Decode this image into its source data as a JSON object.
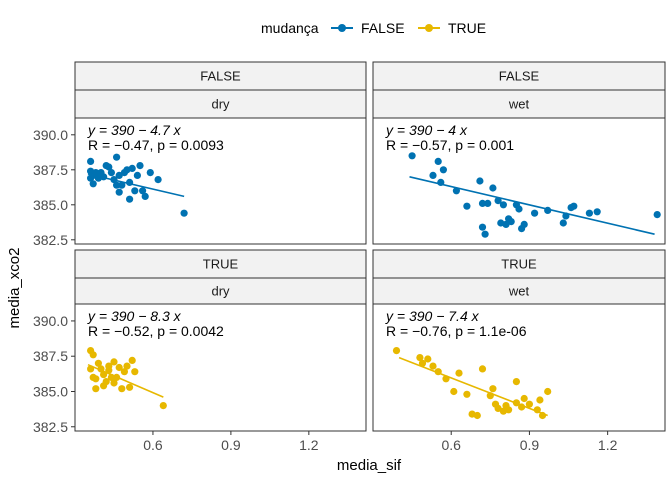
{
  "legend": {
    "title": "mudança",
    "entries": [
      {
        "label": "FALSE",
        "color": "#0072B2"
      },
      {
        "label": "TRUE",
        "color": "#E7B800"
      }
    ]
  },
  "chart_data": {
    "type": "scatter",
    "xlabel": "media_sif",
    "ylabel": "media_xco2",
    "xlim": [
      0.3,
      1.42
    ],
    "ylim": [
      382.2,
      391.2
    ],
    "x_ticks": [
      0.6,
      0.9,
      1.2
    ],
    "x_tick_labels": [
      "0.6",
      "0.9",
      "1.2"
    ],
    "y_ticks": [
      382.5,
      385.0,
      387.5,
      390.0
    ],
    "y_tick_labels": [
      "382.5",
      "385.0",
      "387.5",
      "390.0"
    ],
    "legend_position": "top",
    "grid": false,
    "panels": [
      {
        "strip_top": "FALSE",
        "strip_bottom": "dry",
        "group": "FALSE",
        "color": "#0072B2",
        "equation": "y = 390 − 4.7 x",
        "stats": "R = −0.47, p = 0.0093",
        "fit": {
          "x": [
            0.35,
            0.72
          ],
          "y": [
            387.2,
            385.6
          ]
        },
        "points": [
          {
            "x": 0.36,
            "y": 388.1
          },
          {
            "x": 0.36,
            "y": 387.4
          },
          {
            "x": 0.36,
            "y": 386.9
          },
          {
            "x": 0.37,
            "y": 386.5
          },
          {
            "x": 0.37,
            "y": 387.1
          },
          {
            "x": 0.38,
            "y": 387.3
          },
          {
            "x": 0.39,
            "y": 386.9
          },
          {
            "x": 0.4,
            "y": 387.3
          },
          {
            "x": 0.41,
            "y": 387.0
          },
          {
            "x": 0.42,
            "y": 387.8
          },
          {
            "x": 0.43,
            "y": 387.7
          },
          {
            "x": 0.44,
            "y": 387.3
          },
          {
            "x": 0.45,
            "y": 386.8
          },
          {
            "x": 0.46,
            "y": 386.4
          },
          {
            "x": 0.46,
            "y": 388.4
          },
          {
            "x": 0.47,
            "y": 387.1
          },
          {
            "x": 0.47,
            "y": 385.9
          },
          {
            "x": 0.48,
            "y": 386.4
          },
          {
            "x": 0.49,
            "y": 387.3
          },
          {
            "x": 0.5,
            "y": 387.5
          },
          {
            "x": 0.51,
            "y": 385.4
          },
          {
            "x": 0.51,
            "y": 386.6
          },
          {
            "x": 0.52,
            "y": 387.6
          },
          {
            "x": 0.53,
            "y": 386.0
          },
          {
            "x": 0.54,
            "y": 387.1
          },
          {
            "x": 0.55,
            "y": 387.8
          },
          {
            "x": 0.56,
            "y": 386.0
          },
          {
            "x": 0.57,
            "y": 385.6
          },
          {
            "x": 0.59,
            "y": 387.3
          },
          {
            "x": 0.62,
            "y": 386.8
          },
          {
            "x": 0.72,
            "y": 384.4
          }
        ]
      },
      {
        "strip_top": "FALSE",
        "strip_bottom": "wet",
        "group": "FALSE",
        "color": "#0072B2",
        "equation": "y = 390 − 4 x",
        "stats": "R = −0.57, p = 0.001",
        "fit": {
          "x": [
            0.44,
            1.38
          ],
          "y": [
            387.0,
            382.9
          ]
        },
        "points": [
          {
            "x": 0.45,
            "y": 388.5
          },
          {
            "x": 0.53,
            "y": 387.1
          },
          {
            "x": 0.55,
            "y": 388.1
          },
          {
            "x": 0.56,
            "y": 386.6
          },
          {
            "x": 0.57,
            "y": 387.5
          },
          {
            "x": 0.62,
            "y": 386.0
          },
          {
            "x": 0.66,
            "y": 384.9
          },
          {
            "x": 0.71,
            "y": 386.7
          },
          {
            "x": 0.72,
            "y": 385.1
          },
          {
            "x": 0.72,
            "y": 383.4
          },
          {
            "x": 0.73,
            "y": 382.9
          },
          {
            "x": 0.74,
            "y": 385.1
          },
          {
            "x": 0.76,
            "y": 386.2
          },
          {
            "x": 0.78,
            "y": 385.3
          },
          {
            "x": 0.79,
            "y": 383.7
          },
          {
            "x": 0.8,
            "y": 385.0
          },
          {
            "x": 0.81,
            "y": 383.6
          },
          {
            "x": 0.82,
            "y": 384.0
          },
          {
            "x": 0.83,
            "y": 383.8
          },
          {
            "x": 0.85,
            "y": 385.0
          },
          {
            "x": 0.86,
            "y": 384.7
          },
          {
            "x": 0.87,
            "y": 383.3
          },
          {
            "x": 0.88,
            "y": 383.6
          },
          {
            "x": 0.92,
            "y": 384.4
          },
          {
            "x": 0.97,
            "y": 384.6
          },
          {
            "x": 1.03,
            "y": 383.7
          },
          {
            "x": 1.04,
            "y": 384.2
          },
          {
            "x": 1.06,
            "y": 384.8
          },
          {
            "x": 1.07,
            "y": 384.9
          },
          {
            "x": 1.13,
            "y": 384.4
          },
          {
            "x": 1.16,
            "y": 384.5
          },
          {
            "x": 1.39,
            "y": 384.3
          }
        ]
      },
      {
        "strip_top": "TRUE",
        "strip_bottom": "dry",
        "group": "TRUE",
        "color": "#E7B800",
        "equation": "y = 390 − 8.3 x",
        "stats": "R = −0.52, p = 0.0042",
        "fit": {
          "x": [
            0.35,
            0.64
          ],
          "y": [
            386.9,
            384.6
          ]
        },
        "points": [
          {
            "x": 0.36,
            "y": 387.9
          },
          {
            "x": 0.36,
            "y": 386.6
          },
          {
            "x": 0.37,
            "y": 387.6
          },
          {
            "x": 0.37,
            "y": 386.0
          },
          {
            "x": 0.38,
            "y": 385.9
          },
          {
            "x": 0.38,
            "y": 385.2
          },
          {
            "x": 0.39,
            "y": 387.0
          },
          {
            "x": 0.4,
            "y": 386.6
          },
          {
            "x": 0.41,
            "y": 386.2
          },
          {
            "x": 0.41,
            "y": 385.4
          },
          {
            "x": 0.42,
            "y": 385.7
          },
          {
            "x": 0.43,
            "y": 386.5
          },
          {
            "x": 0.43,
            "y": 386.8
          },
          {
            "x": 0.44,
            "y": 386.0
          },
          {
            "x": 0.45,
            "y": 387.1
          },
          {
            "x": 0.45,
            "y": 385.6
          },
          {
            "x": 0.46,
            "y": 386.0
          },
          {
            "x": 0.47,
            "y": 386.7
          },
          {
            "x": 0.48,
            "y": 385.2
          },
          {
            "x": 0.49,
            "y": 386.4
          },
          {
            "x": 0.5,
            "y": 386.8
          },
          {
            "x": 0.51,
            "y": 385.3
          },
          {
            "x": 0.52,
            "y": 387.2
          },
          {
            "x": 0.53,
            "y": 386.4
          },
          {
            "x": 0.64,
            "y": 384.0
          }
        ]
      },
      {
        "strip_top": "TRUE",
        "strip_bottom": "wet",
        "group": "TRUE",
        "color": "#E7B800",
        "equation": "y = 390 − 7.4 x",
        "stats": "R = −0.76, p = 1.1e-06",
        "fit": {
          "x": [
            0.4,
            0.97
          ],
          "y": [
            387.4,
            383.3
          ]
        },
        "points": [
          {
            "x": 0.39,
            "y": 387.9
          },
          {
            "x": 0.48,
            "y": 387.4
          },
          {
            "x": 0.49,
            "y": 387.0
          },
          {
            "x": 0.51,
            "y": 387.3
          },
          {
            "x": 0.53,
            "y": 386.8
          },
          {
            "x": 0.55,
            "y": 386.4
          },
          {
            "x": 0.58,
            "y": 385.9
          },
          {
            "x": 0.61,
            "y": 385.0
          },
          {
            "x": 0.63,
            "y": 386.3
          },
          {
            "x": 0.66,
            "y": 384.8
          },
          {
            "x": 0.68,
            "y": 383.4
          },
          {
            "x": 0.7,
            "y": 383.3
          },
          {
            "x": 0.72,
            "y": 386.6
          },
          {
            "x": 0.75,
            "y": 384.7
          },
          {
            "x": 0.76,
            "y": 385.2
          },
          {
            "x": 0.77,
            "y": 384.1
          },
          {
            "x": 0.78,
            "y": 383.8
          },
          {
            "x": 0.8,
            "y": 383.6
          },
          {
            "x": 0.81,
            "y": 384.0
          },
          {
            "x": 0.82,
            "y": 383.7
          },
          {
            "x": 0.85,
            "y": 385.7
          },
          {
            "x": 0.85,
            "y": 384.2
          },
          {
            "x": 0.87,
            "y": 383.9
          },
          {
            "x": 0.88,
            "y": 384.5
          },
          {
            "x": 0.9,
            "y": 384.1
          },
          {
            "x": 0.93,
            "y": 383.7
          },
          {
            "x": 0.94,
            "y": 384.4
          },
          {
            "x": 0.95,
            "y": 383.3
          },
          {
            "x": 0.97,
            "y": 385.0
          }
        ]
      }
    ]
  }
}
